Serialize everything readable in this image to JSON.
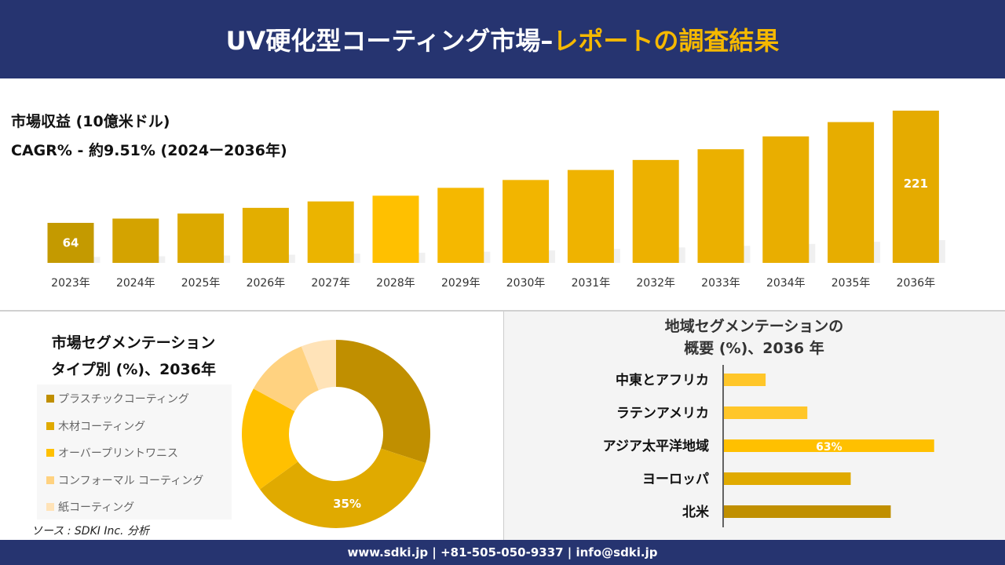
{
  "header": {
    "title_main": "UV硬化型コーティング市場–",
    "title_highlight": "レポートの調査結果"
  },
  "footer": {
    "contact": "www.sdki.jp | +81-505-050-9337 | info@sdki.jp"
  },
  "source": "ソース : SDKI Inc. 分析",
  "colors": {
    "navy": "#263470",
    "accent": "#f5b800"
  },
  "chart_data": [
    {
      "type": "bar",
      "title": "市場収益 (10億米ドル)",
      "subtitle": "CAGR% - 約9.51% (2024ー2036年)",
      "categories": [
        "2023年",
        "2024年",
        "2025年",
        "2026年",
        "2027年",
        "2028年",
        "2029年",
        "2030年",
        "2031年",
        "2032年",
        "2033年",
        "2034年",
        "2035年",
        "2036年"
      ],
      "values": [
        64,
        70,
        77,
        85,
        94,
        102,
        113,
        124,
        138,
        152,
        167,
        185,
        205,
        221
      ],
      "data_labels": {
        "0": "64",
        "13": "221"
      },
      "ylim": [
        8,
        221
      ],
      "colors": [
        "#c49a00",
        "#d4a300",
        "#dca900",
        "#e3ae00",
        "#ebb400",
        "#ffc000",
        "#f5b800",
        "#f2b500",
        "#efb300",
        "#edb100",
        "#ebb000",
        "#e9ae00",
        "#e7ad00",
        "#e5ab00"
      ]
    },
    {
      "type": "pie",
      "title_line1": "市場セグメンテーション",
      "title_line2": "タイプ別 (%)、2036年",
      "labels": [
        "プラスチックコーティング",
        "木材コーティング",
        "オーバープリントワニス",
        "コンフォーマル コーティング",
        "紙コーティング"
      ],
      "values": [
        30,
        35,
        18,
        11,
        6
      ],
      "colors": [
        "#c08f00",
        "#e0aa00",
        "#ffc000",
        "#ffd280",
        "#ffe3b8"
      ],
      "data_labels": {
        "1": "35%"
      },
      "donut": true
    },
    {
      "type": "bar",
      "orientation": "horizontal",
      "title_line1": "地域セグメンテーションの",
      "title_line2": "概要 (%)、2036 年",
      "categories": [
        "中東とアフリカ",
        "ラテンアメリカ",
        "アジア太平洋地域",
        "ヨーロッパ",
        "北米"
      ],
      "values": [
        12.5,
        25,
        63,
        38,
        50
      ],
      "colors": [
        "#ffc629",
        "#ffc629",
        "#ffc000",
        "#e0aa00",
        "#c08f00"
      ],
      "data_labels": {
        "2": "63%"
      }
    }
  ]
}
